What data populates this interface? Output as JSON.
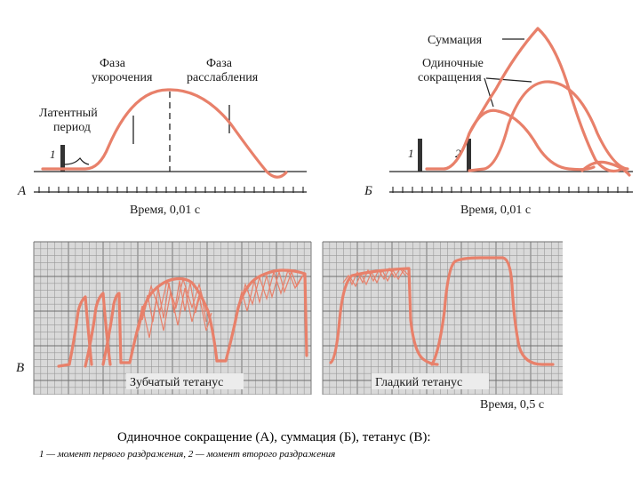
{
  "panel_a": {
    "letter": "A",
    "stimulus_1": "1",
    "latent_label_line1": "Латентный",
    "latent_label_line2": "период",
    "shortening_line1": "Фаза",
    "shortening_line2": "укорочения",
    "relaxation_line1": "Фаза",
    "relaxation_line2": "расслабления",
    "time_axis_label": "Время, 0,01 с"
  },
  "panel_b": {
    "letter": "Б",
    "stimulus_1": "1",
    "stimulus_2": "2",
    "summation_label": "Суммация",
    "single_line1": "Одиночные",
    "single_line2": "сокращения",
    "time_axis_label": "Время, 0,01 с"
  },
  "panel_v": {
    "letter": "В",
    "jagged_label": "Зубчатый тетанус",
    "smooth_label": "Гладкий тетанус",
    "time_axis_label": "Время, 0,5 с"
  },
  "caption": {
    "title": "Одиночное сокращение (А), суммация (Б), тетанус (В):",
    "note": "1 — момент первого раздражения, 2 — момент второго раздражения"
  },
  "colors": {
    "curve": "#e8806a",
    "grid_background": "#d9d9d9",
    "axis": "#222222"
  }
}
